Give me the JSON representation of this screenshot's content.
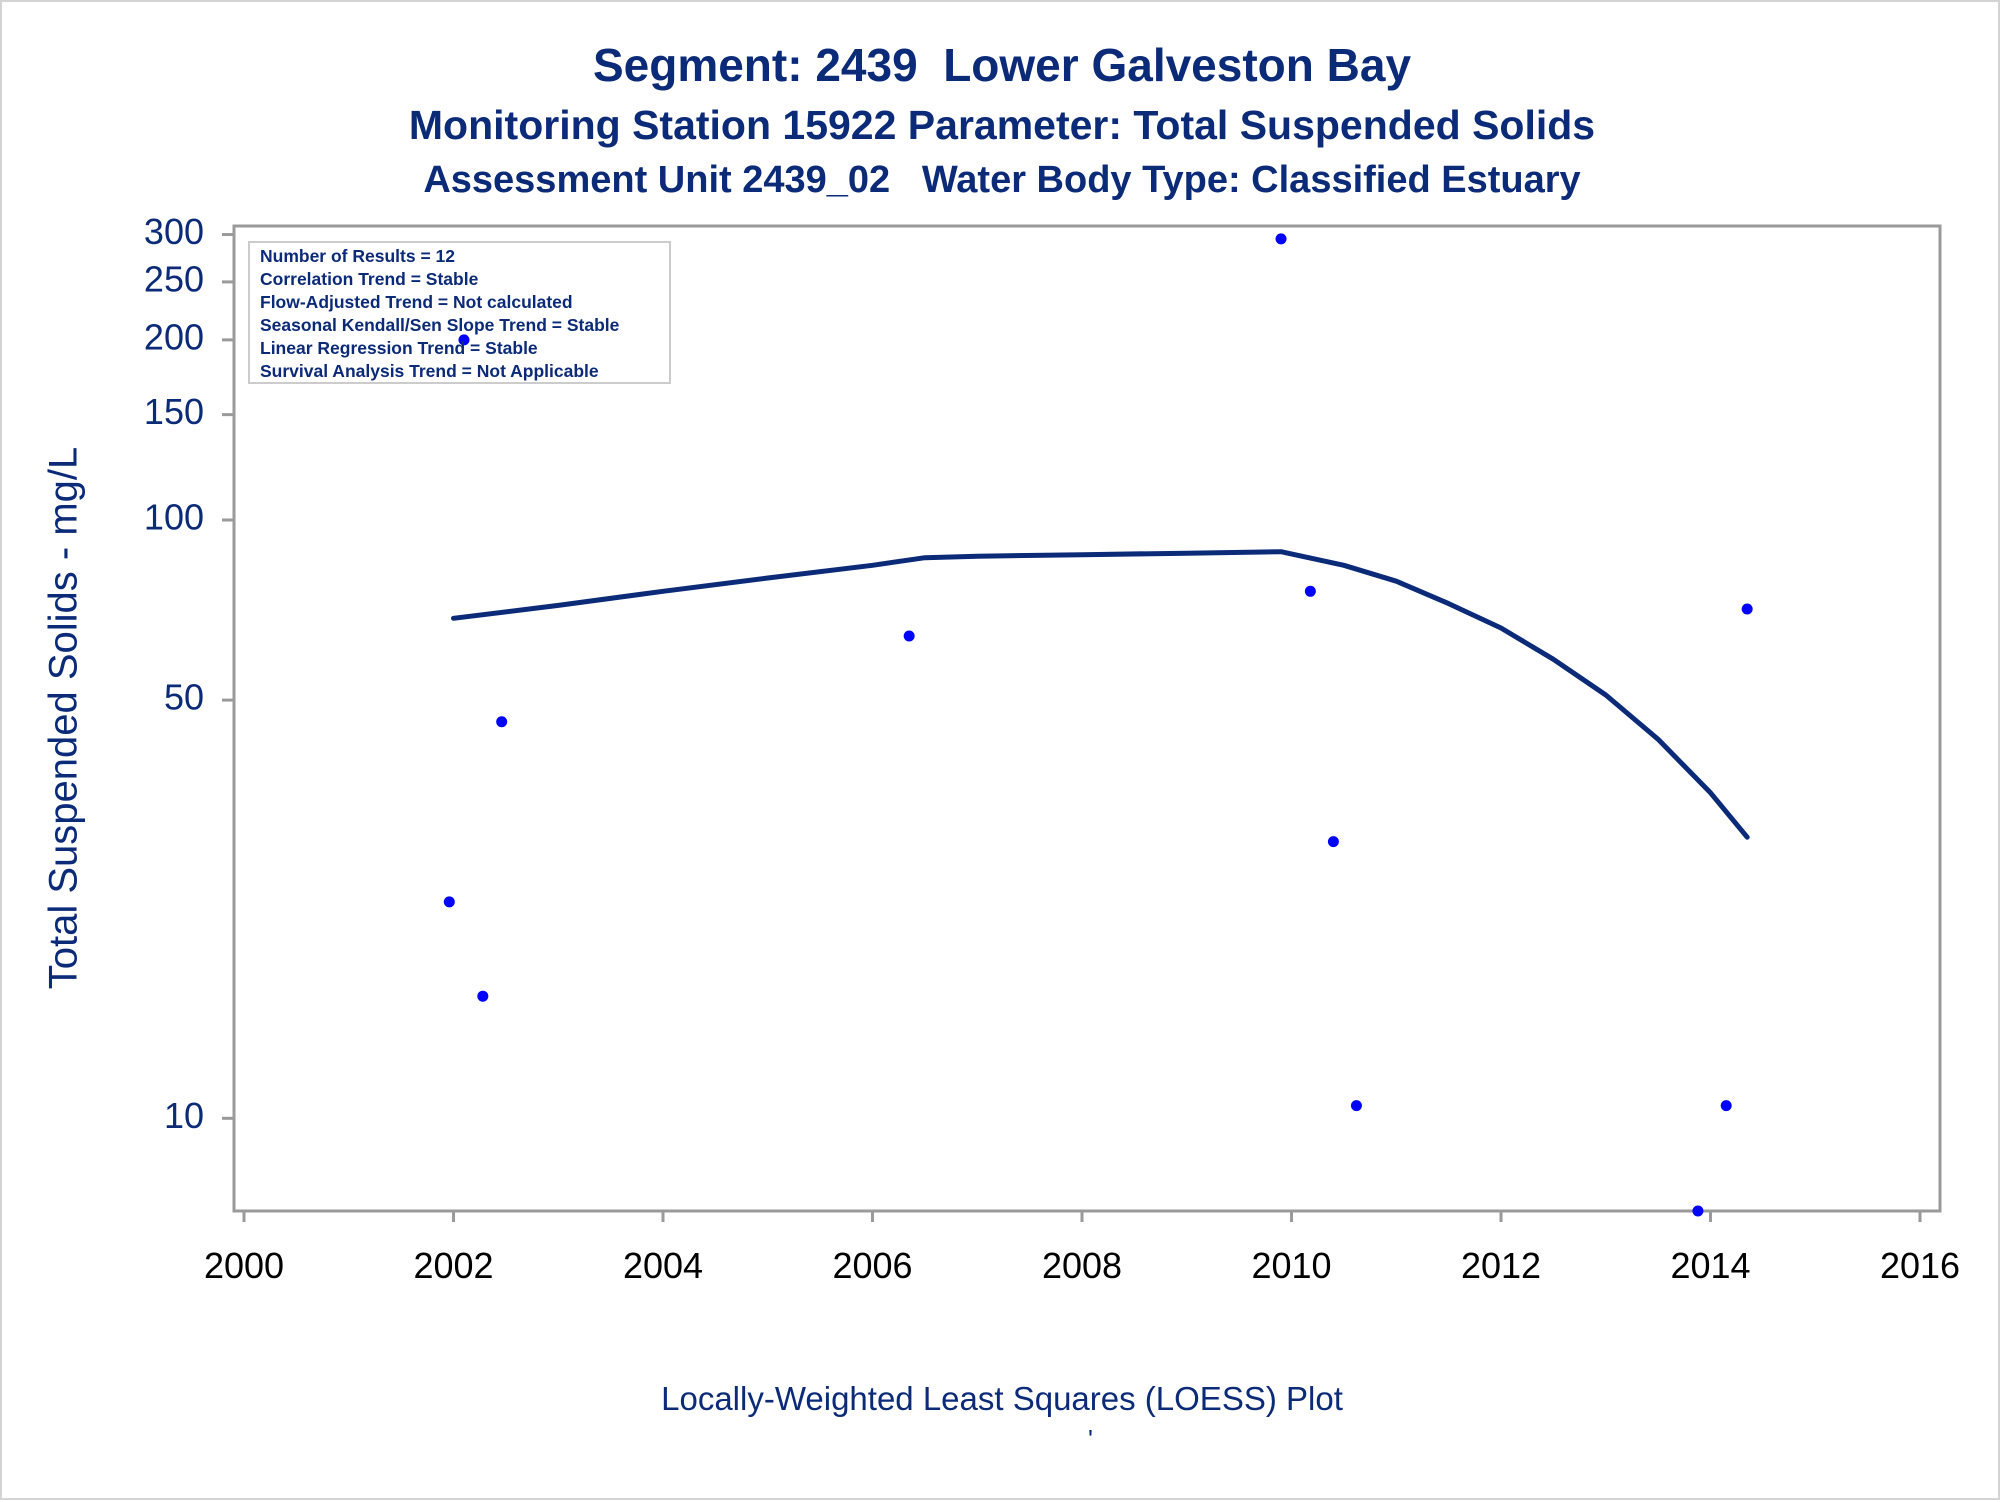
{
  "chart_data": {
    "type": "scatter",
    "title": "Segment: 2439  Lower Galveston Bay",
    "subtitle": "Monitoring Station 15922 Parameter: Total Suspended Solids",
    "subtitle2": "Assessment Unit 2439_02   Water Body Type: Classified Estuary",
    "xlabel": "",
    "ylabel": "Total Suspended Solids - mg/L",
    "footnote": "Locally-Weighted Least Squares (LOESS) Plot",
    "footnote_mark": "'",
    "x_scale": "linear",
    "y_scale": "log",
    "xlim": [
      2000,
      2016
    ],
    "ylim": [
      7,
      310
    ],
    "x_ticks": [
      2000,
      2002,
      2004,
      2006,
      2008,
      2010,
      2012,
      2014,
      2016
    ],
    "x_tick_labels": [
      "2000",
      "2002",
      "2004",
      "2006",
      "2008",
      "2010",
      "2012",
      "2014",
      "2016"
    ],
    "y_ticks": [
      10,
      50,
      100,
      150,
      200,
      250,
      300
    ],
    "y_tick_labels": [
      "10",
      "50",
      "100",
      "150",
      "200",
      "250",
      "300"
    ],
    "grid": false,
    "legend_position": "top-left",
    "colors": {
      "points": "#0000ff",
      "curve": "#0b2a78",
      "text": "#0b2a78",
      "axis": "#9a9a9a"
    },
    "stats_box": [
      "Number of Results = 12",
      "Correlation Trend = Stable",
      "Flow-Adjusted Trend = Not calculated",
      "Seasonal Kendall/Sen Slope Trend = Stable",
      "Linear Regression Trend = Stable",
      "Survival Analysis Trend = Not Applicable"
    ],
    "series": [
      {
        "kind": "points",
        "x": [
          2001.96,
          2002.1,
          2002.28,
          2002.46,
          2006.35,
          2009.9,
          2010.18,
          2010.4,
          2010.62,
          2013.88,
          2014.15,
          2014.35
        ],
        "y": [
          23,
          200,
          16,
          46,
          64,
          295,
          76,
          29,
          10.5,
          7,
          10.5,
          71
        ]
      },
      {
        "kind": "loess",
        "x": [
          2002,
          2003,
          2004,
          2005,
          2006,
          2006.5,
          2007,
          2008,
          2009,
          2009.9,
          2010.5,
          2011,
          2011.5,
          2012,
          2012.5,
          2013,
          2013.5,
          2014,
          2014.35
        ],
        "y": [
          68.5,
          72,
          76,
          80,
          84,
          86.5,
          87,
          87.5,
          88,
          88.5,
          84,
          79,
          72.5,
          66,
          58.5,
          51,
          43,
          35,
          29.5
        ]
      }
    ]
  }
}
